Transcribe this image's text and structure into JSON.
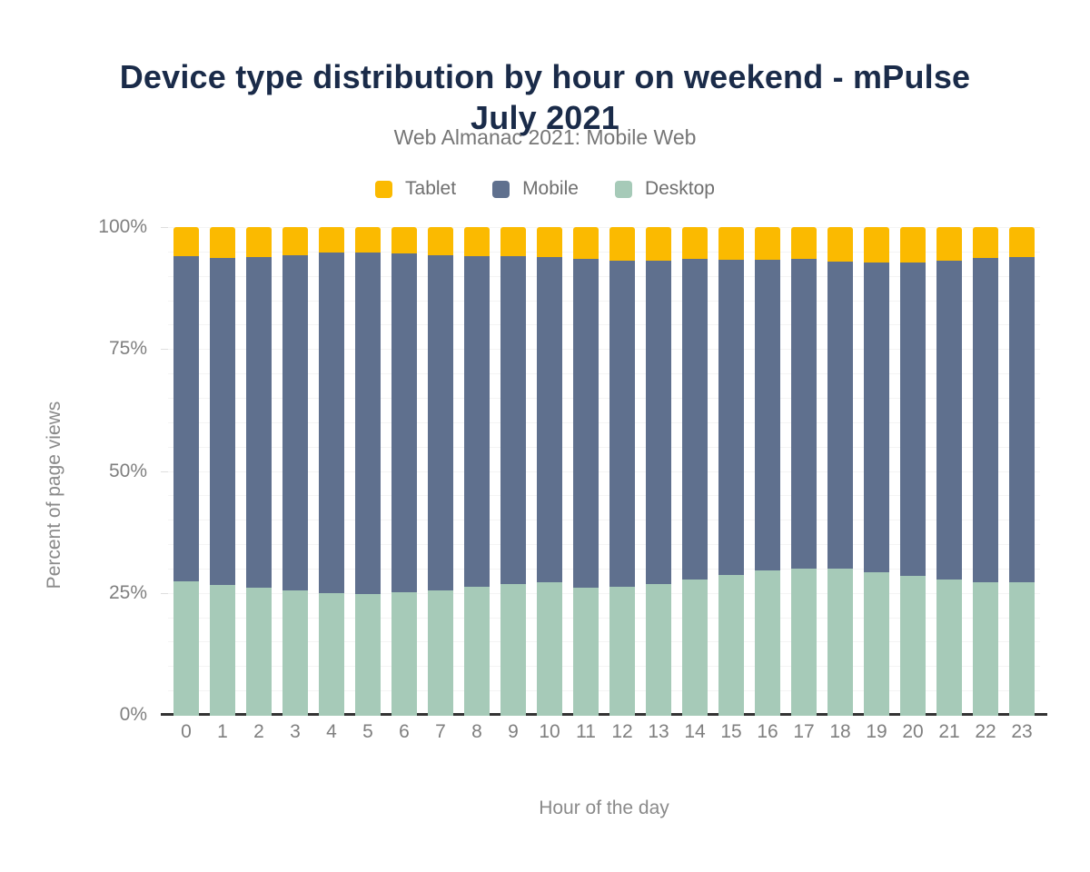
{
  "chart_data": {
    "type": "bar",
    "variant": "stacked-percent",
    "title": "Device type distribution by hour on weekend - mPulse July 2021",
    "subtitle": "Web Almanac 2021: Mobile Web",
    "xlabel": "Hour of the day",
    "ylabel": "Percent of page views",
    "ylim": [
      0,
      100
    ],
    "grid": "horizontal, minor every 5%",
    "legend_position": "top",
    "categories": [
      0,
      1,
      2,
      3,
      4,
      5,
      6,
      7,
      8,
      9,
      10,
      11,
      12,
      13,
      14,
      15,
      16,
      17,
      18,
      19,
      20,
      21,
      22,
      23
    ],
    "series": [
      {
        "name": "Desktop",
        "color": "#a6cab8",
        "values": [
          27.5,
          26.8,
          26.3,
          25.6,
          25.1,
          25.0,
          25.2,
          25.7,
          26.4,
          27.0,
          27.3,
          26.3,
          26.4,
          27.0,
          27.8,
          28.8,
          29.7,
          30.1,
          30.1,
          29.3,
          28.6,
          27.8,
          27.3,
          27.4
        ]
      },
      {
        "name": "Mobile",
        "color": "#5f708e",
        "values": [
          66.5,
          66.9,
          67.5,
          68.7,
          69.7,
          69.8,
          69.4,
          68.5,
          67.6,
          67.0,
          66.5,
          67.2,
          66.7,
          66.1,
          65.7,
          64.5,
          63.6,
          63.4,
          62.8,
          63.4,
          64.1,
          65.3,
          66.4,
          66.5
        ]
      },
      {
        "name": "Tablet",
        "color": "#fbba00",
        "values": [
          6.0,
          6.3,
          6.2,
          5.7,
          5.2,
          5.2,
          5.4,
          5.8,
          6.0,
          6.0,
          6.2,
          6.5,
          6.9,
          6.9,
          6.5,
          6.7,
          6.7,
          6.5,
          7.1,
          7.3,
          7.3,
          6.9,
          6.3,
          6.1
        ]
      }
    ],
    "legend": [
      {
        "label": "Tablet",
        "color": "#fbba00"
      },
      {
        "label": "Mobile",
        "color": "#5f708e"
      },
      {
        "label": "Desktop",
        "color": "#a6cab8"
      }
    ],
    "y_ticks": [
      {
        "label": "0%",
        "value": 0
      },
      {
        "label": "25%",
        "value": 25
      },
      {
        "label": "50%",
        "value": 50
      },
      {
        "label": "75%",
        "value": 75
      },
      {
        "label": "100%",
        "value": 100
      }
    ],
    "colors": {
      "title": "#1a2b49",
      "subtitle": "#767676",
      "axis_labels": "#7f7f7f",
      "axis_line": "#333333",
      "gridline": "#f4f4f4",
      "background": "#ffffff"
    }
  }
}
